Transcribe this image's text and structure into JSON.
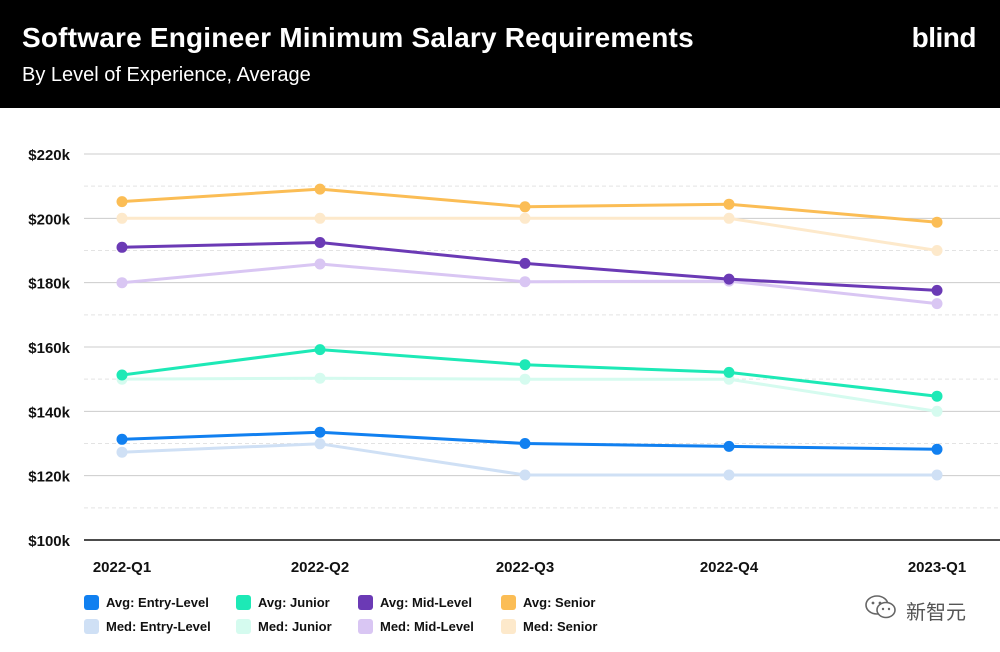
{
  "header": {
    "title": "Software Engineer Minimum Salary Requirements",
    "subtitle": "By Level of Experience, Average",
    "brand": "blind"
  },
  "watermark": {
    "text": "新智元",
    "icon": "wechat-icon"
  },
  "chart_data": {
    "type": "line",
    "title": "Software Engineer Minimum Salary Requirements",
    "subtitle": "By Level of Experience, Average",
    "xlabel": "",
    "ylabel": "",
    "categories": [
      "2022-Q1",
      "2022-Q2",
      "2022-Q3",
      "2022-Q4",
      "2023-Q1"
    ],
    "ylim": [
      100000,
      220000
    ],
    "yticks": [
      100000,
      120000,
      140000,
      160000,
      180000,
      200000,
      220000
    ],
    "ytick_labels": [
      "$100k",
      "$120k",
      "$140k",
      "$160k",
      "$180k",
      "$200k",
      "$220k"
    ],
    "grid": true,
    "legend_position": "bottom-left",
    "series": [
      {
        "name": "Med: Entry-Level",
        "color": "#cfe0f5",
        "values": [
          127300,
          129900,
          120200,
          120200,
          120200
        ]
      },
      {
        "name": "Med: Junior",
        "color": "#d5fbef",
        "values": [
          150000,
          150300,
          150000,
          150000,
          140000
        ]
      },
      {
        "name": "Med: Mid-Level",
        "color": "#d9c6f3",
        "values": [
          180000,
          185800,
          180300,
          180500,
          173500
        ]
      },
      {
        "name": "Med: Senior",
        "color": "#fde9cb",
        "values": [
          200000,
          200000,
          200000,
          200000,
          190000
        ]
      },
      {
        "name": "Avg: Entry-Level",
        "color": "#1180f0",
        "values": [
          131300,
          133500,
          130000,
          129100,
          128200
        ]
      },
      {
        "name": "Avg: Junior",
        "color": "#1de9b6",
        "values": [
          151300,
          159200,
          154500,
          152100,
          144700
        ]
      },
      {
        "name": "Avg: Mid-Level",
        "color": "#6b3ab5",
        "values": [
          191000,
          192500,
          186000,
          181100,
          177600
        ]
      },
      {
        "name": "Avg: Senior",
        "color": "#fbbd55",
        "values": [
          205200,
          209100,
          203600,
          204400,
          198800
        ]
      }
    ]
  },
  "legend": [
    {
      "label": "Avg: Entry-Level",
      "color": "#1180f0"
    },
    {
      "label": "Avg: Junior",
      "color": "#1de9b6"
    },
    {
      "label": "Avg: Mid-Level",
      "color": "#6b3ab5"
    },
    {
      "label": "Avg: Senior",
      "color": "#fbbd55"
    },
    {
      "label": "Med: Entry-Level",
      "color": "#cfe0f5"
    },
    {
      "label": "Med: Junior",
      "color": "#d5fbef"
    },
    {
      "label": "Med: Mid-Level",
      "color": "#d9c6f3"
    },
    {
      "label": "Med: Senior",
      "color": "#fde9cb"
    }
  ]
}
